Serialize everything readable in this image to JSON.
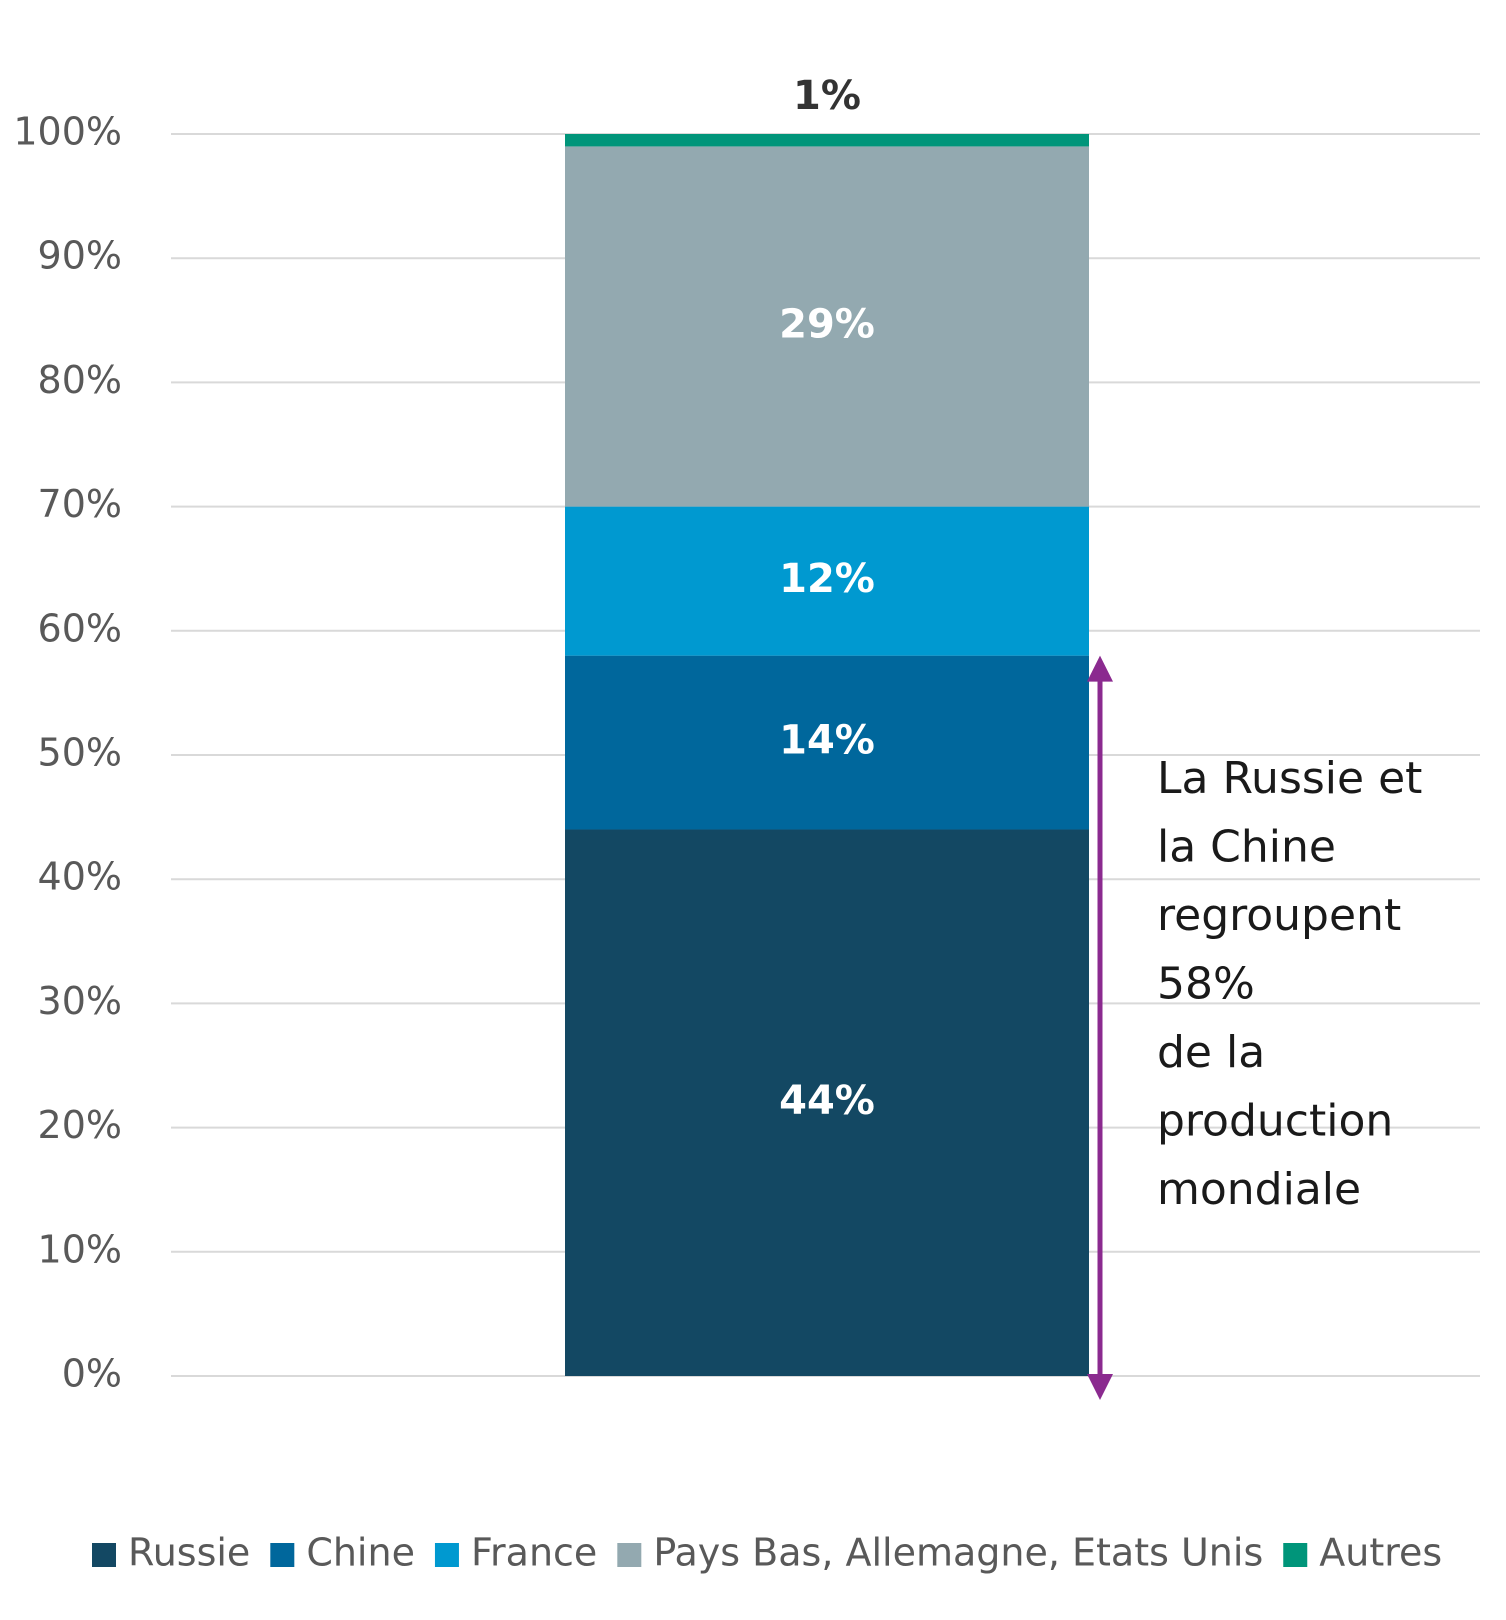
{
  "chart_data": {
    "type": "stacked-bar",
    "categories": [
      null
    ],
    "series": [
      {
        "name": "Russie",
        "color": "#134863",
        "values": [
          44
        ],
        "value_labels": [
          "44%"
        ]
      },
      {
        "name": "Chine",
        "color": "#00679c",
        "values": [
          14
        ],
        "value_labels": [
          "14%"
        ]
      },
      {
        "name": "France",
        "color": "#0099d0",
        "values": [
          12
        ],
        "value_labels": [
          "12%"
        ]
      },
      {
        "name": "Pays Bas, Allemagne, Etats Unis",
        "color": "#93a9b0",
        "values": [
          29
        ],
        "value_labels": [
          "29%"
        ]
      },
      {
        "name": "Autres",
        "color": "#00957a",
        "values": [
          1
        ],
        "value_labels": [
          "1%"
        ]
      }
    ],
    "ylim": [
      0,
      100
    ],
    "yticks": [
      {
        "value": 0,
        "label": "0%"
      },
      {
        "value": 10,
        "label": "10%"
      },
      {
        "value": 20,
        "label": "20%"
      },
      {
        "value": 30,
        "label": "30%"
      },
      {
        "value": 40,
        "label": "40%"
      },
      {
        "value": 50,
        "label": "50%"
      },
      {
        "value": 60,
        "label": "60%"
      },
      {
        "value": 70,
        "label": "70%"
      },
      {
        "value": 80,
        "label": "80%"
      },
      {
        "value": 90,
        "label": "90%"
      },
      {
        "value": 100,
        "label": "100%"
      }
    ],
    "grid": true,
    "annotation": [
      "La Russie et",
      "la Chine",
      "regroupent",
      "58%",
      "de la",
      "production",
      "mondiale"
    ],
    "annotation_color": "#8b2a8f",
    "legend": "bottom"
  }
}
